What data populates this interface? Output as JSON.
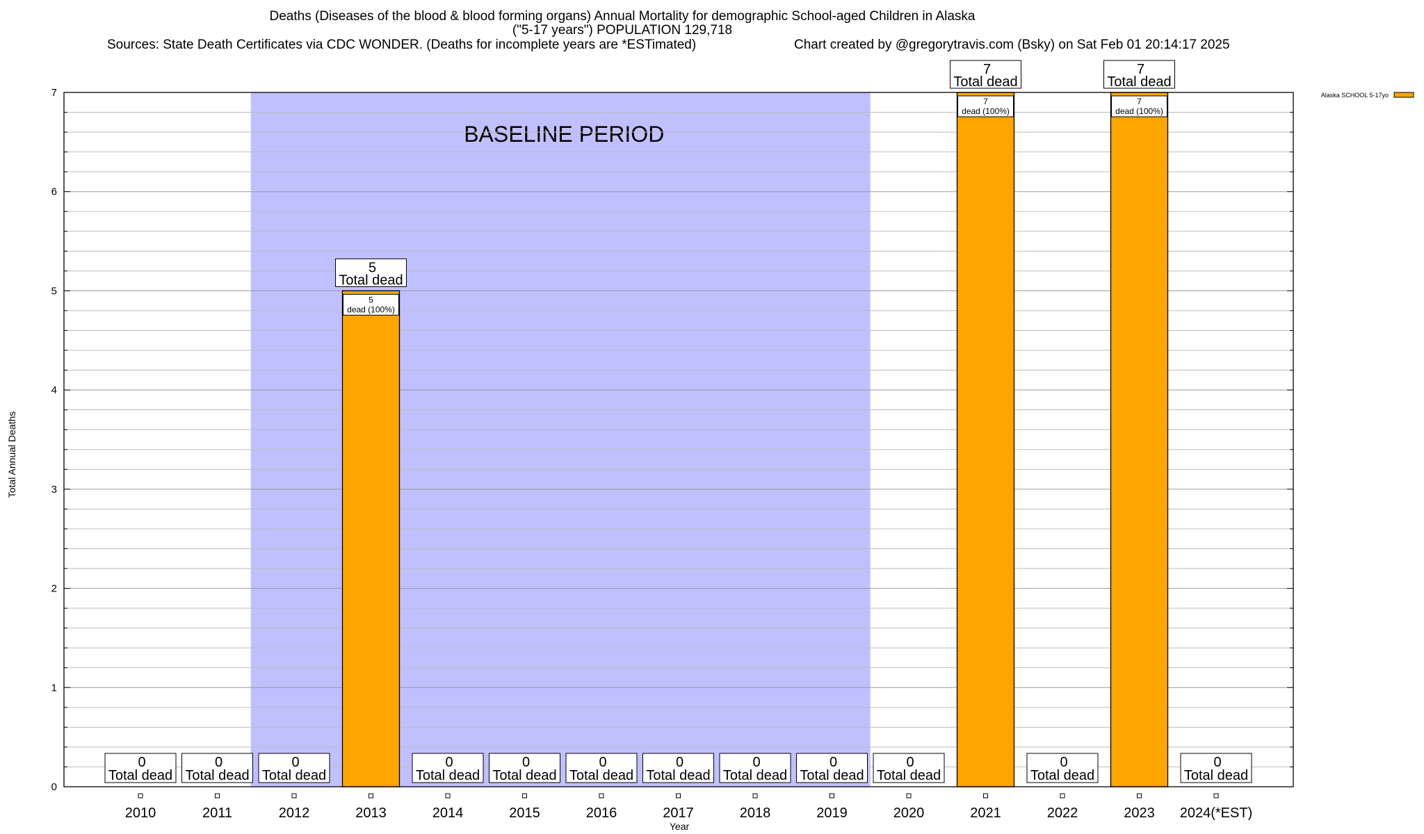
{
  "title": {
    "line1": "Deaths (Diseases of the blood & blood forming organs) Annual Mortality for demographic School-aged Children in Alaska",
    "line2": "(\"5-17 years\") POPULATION 129,718",
    "sources": "Sources: State Death Certificates via CDC WONDER. (Deaths for incomplete years are *ESTimated)",
    "credit": "Chart created by @gregorytravis.com (Bsky) on Sat Feb 01 20:14:17 2025"
  },
  "chart_data": {
    "type": "bar",
    "categories": [
      "2010",
      "2011",
      "2012",
      "2013",
      "2014",
      "2015",
      "2016",
      "2017",
      "2018",
      "2019",
      "2020",
      "2021",
      "2022",
      "2023",
      "2024(*EST)"
    ],
    "series": [
      {
        "name": "Alaska SCHOOL 5-17yo",
        "color": "#FFA500",
        "values": [
          0,
          0,
          0,
          5,
          0,
          0,
          0,
          0,
          0,
          0,
          0,
          7,
          0,
          7,
          0
        ]
      }
    ],
    "total_label_word": "Total dead",
    "bar_inner_label_suffix": "dead (100%)",
    "xlabel": "Year",
    "ylabel": "Total Annual Deaths",
    "ylim": [
      0,
      7
    ],
    "yticks": [
      "0",
      "1",
      "2",
      "3",
      "4",
      "5",
      "6",
      "7"
    ],
    "grid": true,
    "legend_position": "top-right",
    "baseline_period": {
      "label": "BASELINE PERIOD",
      "from": "2012",
      "to": "2019",
      "color": "#C0C0FF"
    }
  }
}
